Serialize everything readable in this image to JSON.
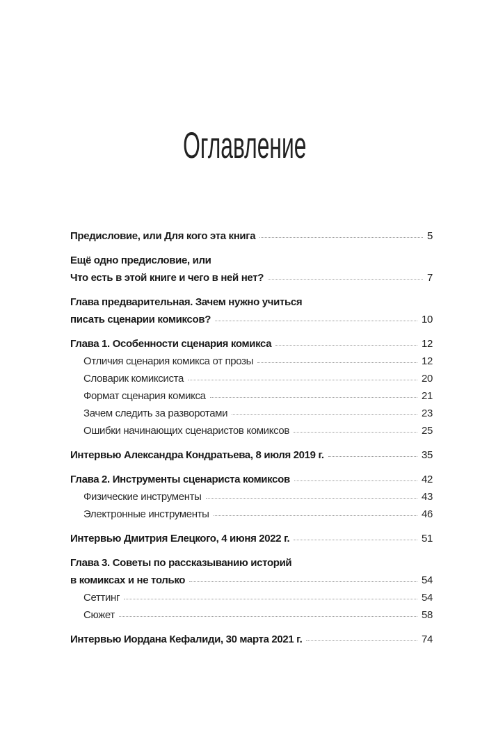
{
  "title": "Оглавление",
  "groups": [
    {
      "rows": [
        {
          "level": "main",
          "lines": [
            "Предисловие, или Для кого эта книга"
          ],
          "page": "5"
        }
      ]
    },
    {
      "rows": [
        {
          "level": "main",
          "lines": [
            "Ещё одно предисловие, или",
            "Что есть в этой книге и чего в ней нет?"
          ],
          "page": "7"
        }
      ]
    },
    {
      "rows": [
        {
          "level": "main",
          "lines": [
            "Глава предварительная. Зачем нужно учиться",
            "писать сценарии комиксов?"
          ],
          "page": "10"
        }
      ]
    },
    {
      "rows": [
        {
          "level": "main",
          "lines": [
            "Глава 1. Особенности сценария комикса"
          ],
          "page": "12"
        },
        {
          "level": "sub",
          "lines": [
            "Отличия сценария комикса от прозы"
          ],
          "page": "12"
        },
        {
          "level": "sub",
          "lines": [
            "Словарик комиксиста"
          ],
          "page": "20"
        },
        {
          "level": "sub",
          "lines": [
            "Формат сценария комикса"
          ],
          "page": "21"
        },
        {
          "level": "sub",
          "lines": [
            "Зачем следить за разворотами"
          ],
          "page": "23"
        },
        {
          "level": "sub",
          "lines": [
            "Ошибки начинающих сценаристов комиксов"
          ],
          "page": "25"
        }
      ]
    },
    {
      "rows": [
        {
          "level": "main",
          "lines": [
            "Интервью Александра Кондратьева, 8 июля 2019 г."
          ],
          "page": "35"
        }
      ]
    },
    {
      "rows": [
        {
          "level": "main",
          "lines": [
            "Глава 2. Инструменты сценариста комиксов"
          ],
          "page": "42"
        },
        {
          "level": "sub",
          "lines": [
            "Физические инструменты"
          ],
          "page": "43"
        },
        {
          "level": "sub",
          "lines": [
            "Электронные инструменты"
          ],
          "page": "46"
        }
      ]
    },
    {
      "rows": [
        {
          "level": "main",
          "lines": [
            "Интервью Дмитрия Елецкого, 4 июня 2022 г."
          ],
          "page": "51"
        }
      ]
    },
    {
      "rows": [
        {
          "level": "main",
          "lines": [
            "Глава 3. Советы по рассказыванию историй",
            "в комиксах и не только"
          ],
          "page": "54"
        },
        {
          "level": "sub",
          "lines": [
            "Сеттинг"
          ],
          "page": "54"
        },
        {
          "level": "sub",
          "lines": [
            "Сюжет"
          ],
          "page": "58"
        }
      ]
    },
    {
      "rows": [
        {
          "level": "main",
          "lines": [
            "Интервью Иордана Кефалиди, 30 марта 2021 г."
          ],
          "page": "74"
        }
      ]
    }
  ]
}
